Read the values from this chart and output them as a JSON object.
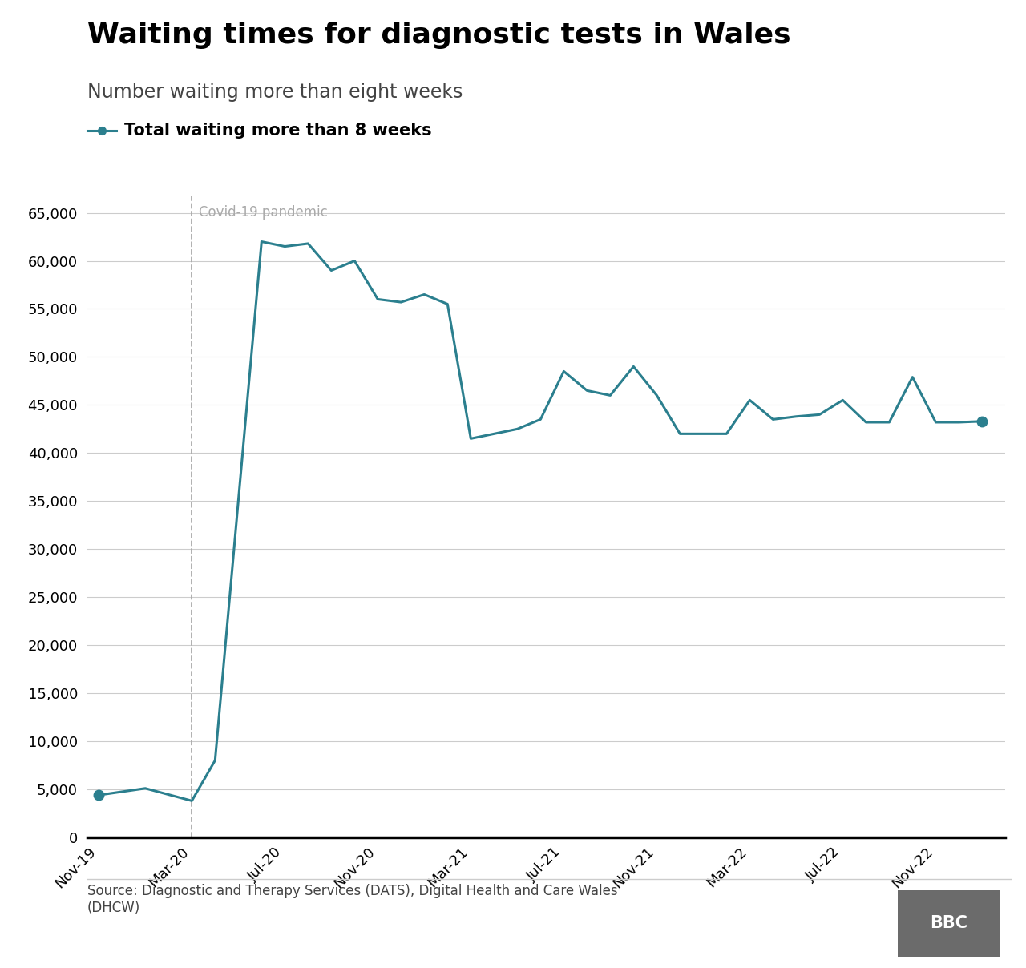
{
  "title": "Waiting times for diagnostic tests in Wales",
  "subtitle": "Number waiting more than eight weeks",
  "legend_label": "Total waiting more than 8 weeks",
  "covid_label": "Covid-19 pandemic",
  "source_text": "Source: Diagnostic and Therapy Services (DATS), Digital Health and Care Wales\n(DHCW)",
  "bbc_text": "BBC",
  "line_color": "#2b7f8e",
  "covid_line_color": "#aaaaaa",
  "x_labels": [
    "Nov-19",
    "Mar-20",
    "Jul-20",
    "Nov-20",
    "Mar-21",
    "Jul-21",
    "Nov-21",
    "Mar-22",
    "Jul-22",
    "Nov-22"
  ],
  "x_tick_positions": [
    0,
    4,
    8,
    12,
    16,
    20,
    24,
    28,
    32,
    36
  ],
  "covid_x": 4,
  "data_points_x": [
    0,
    2,
    4,
    5,
    7,
    8,
    9,
    10,
    11,
    12,
    13,
    14,
    15,
    16,
    17,
    18,
    19,
    20,
    21,
    22,
    23,
    24,
    25,
    26,
    27,
    28,
    29,
    30,
    31,
    32,
    33,
    34,
    35,
    36,
    37,
    38
  ],
  "data_points_y": [
    4400,
    5100,
    3800,
    8000,
    62000,
    61500,
    61800,
    59000,
    60000,
    56000,
    55700,
    56500,
    55500,
    41500,
    42000,
    42500,
    43500,
    48500,
    46500,
    46000,
    49000,
    46000,
    42000,
    42000,
    42000,
    45500,
    43500,
    43800,
    44000,
    45500,
    43200,
    43200,
    47900,
    43200,
    43200,
    43300
  ],
  "ylim": [
    0,
    67000
  ],
  "yticks": [
    0,
    5000,
    10000,
    15000,
    20000,
    25000,
    30000,
    35000,
    40000,
    45000,
    50000,
    55000,
    60000,
    65000
  ],
  "xlim": [
    -0.5,
    39
  ],
  "background_color": "#ffffff",
  "grid_color": "#cccccc",
  "bottom_border_color": "#000000",
  "title_fontsize": 26,
  "subtitle_fontsize": 17,
  "legend_fontsize": 15,
  "axis_fontsize": 13,
  "covid_fontsize": 12,
  "source_fontsize": 12,
  "bbc_fontsize": 15,
  "line_width": 2.2,
  "marker_size": 9,
  "bbc_bg_color": "#6b6b6b"
}
